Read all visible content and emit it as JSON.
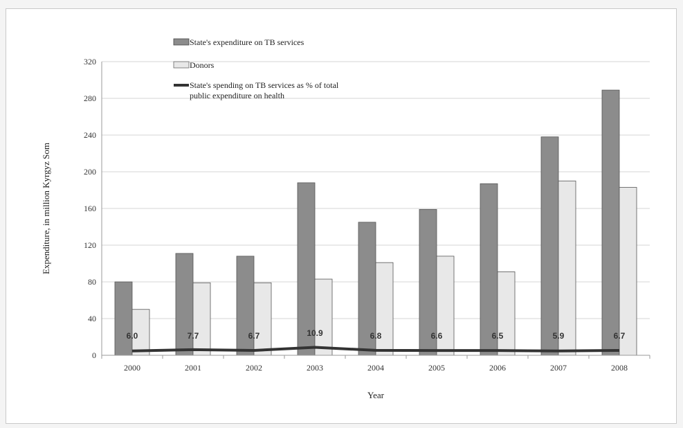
{
  "chart_data": {
    "type": "bar",
    "categories": [
      "2000",
      "2001",
      "2002",
      "2003",
      "2004",
      "2005",
      "2006",
      "2007",
      "2008"
    ],
    "series": [
      {
        "name": "State's expenditure on TB services",
        "kind": "bar",
        "color": "#8c8c8c",
        "values": [
          80,
          111,
          108,
          188,
          145,
          159,
          187,
          238,
          289
        ]
      },
      {
        "name": "Donors",
        "kind": "bar",
        "color": "#e8e8e8",
        "values": [
          50,
          79,
          79,
          83,
          101,
          108,
          91,
          190,
          183
        ]
      },
      {
        "name": "State's spending on TB services as % of total public expenditure on health",
        "name_lines": [
          "State's spending on TB services as % of total",
          "public expenditure on health"
        ],
        "kind": "line",
        "color": "#333333",
        "values": [
          6.0,
          7.7,
          6.7,
          10.9,
          6.8,
          6.6,
          6.5,
          5.9,
          6.7
        ],
        "value_labels": [
          "6.0",
          "7.7",
          "6.7",
          "10.9",
          "6.8",
          "6.6",
          "6.5",
          "5.9",
          "6.7"
        ]
      }
    ],
    "xlabel": "Year",
    "ylabel": "Expenditure, in million Kyrgyz  Som",
    "ylim": [
      0,
      320
    ],
    "yticks": [
      "0",
      "40",
      "80",
      "120",
      "160",
      "200",
      "240",
      "280",
      "320"
    ],
    "grid": true,
    "legend_position": "top-left"
  }
}
